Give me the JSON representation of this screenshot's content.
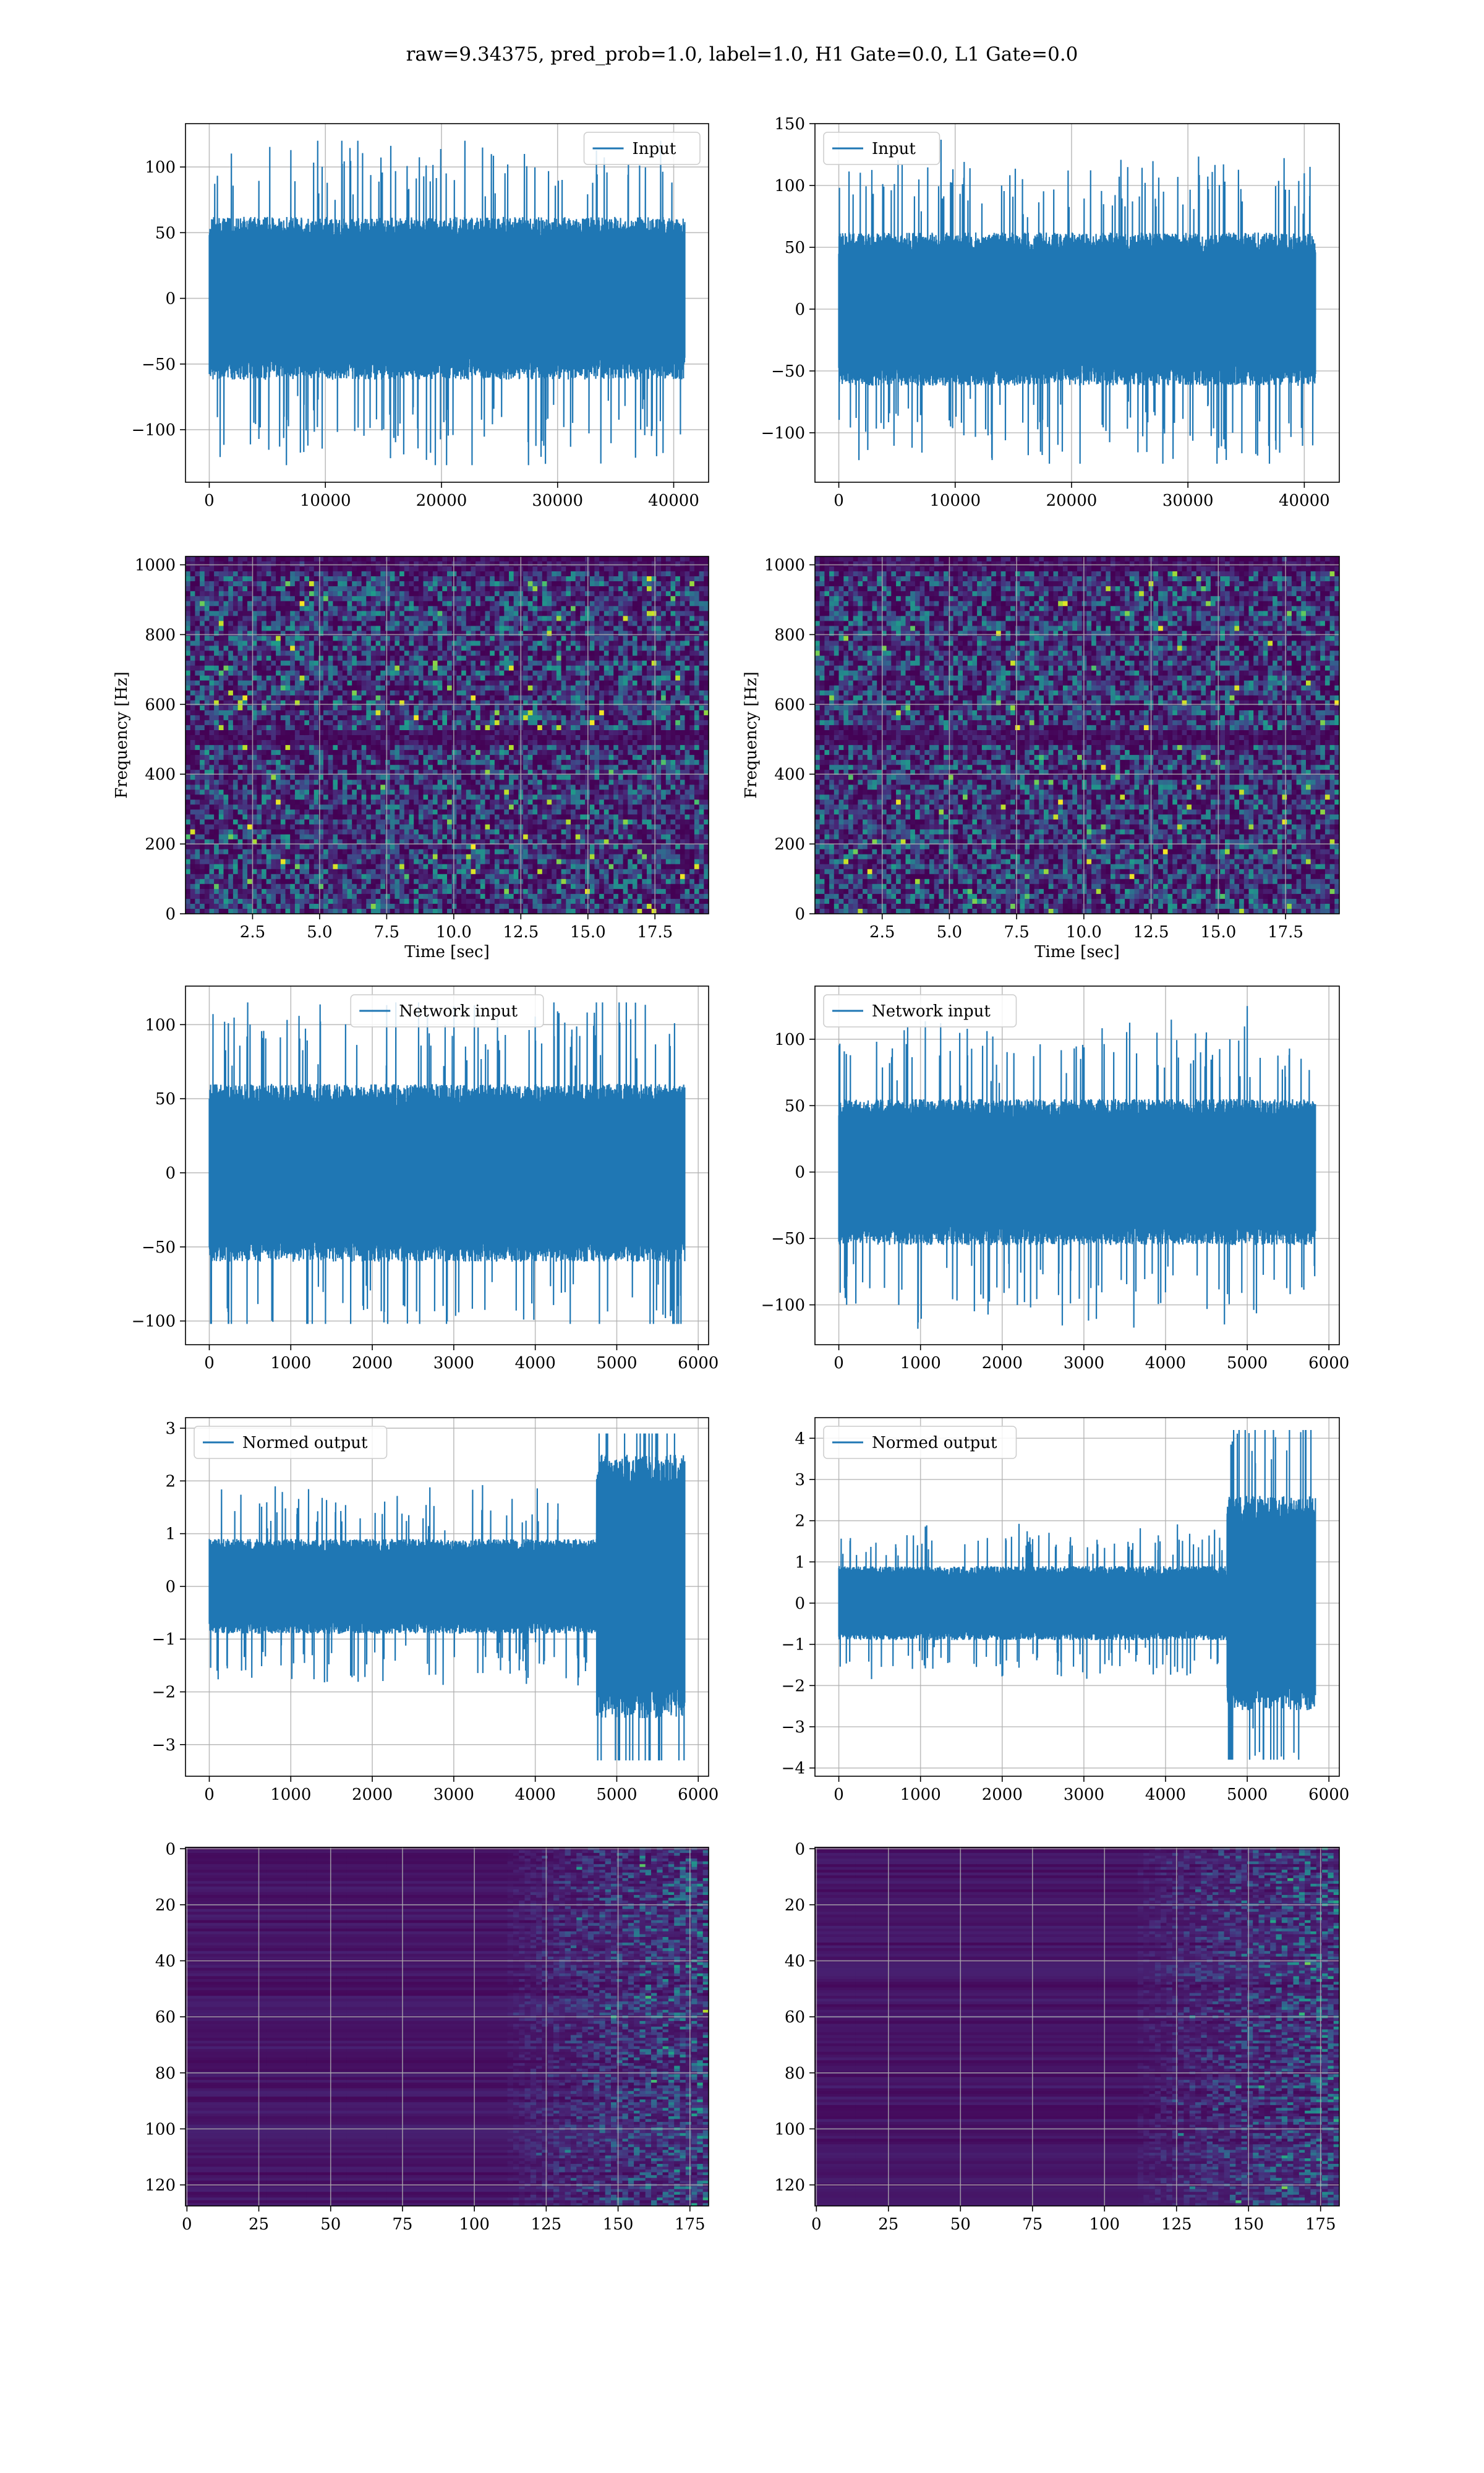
{
  "suptitle": "raw=9.34375, pred_prob=1.0, label=1.0, H1 Gate=0.0, L1 Gate=0.0",
  "colors": {
    "line": "#1f77b4",
    "grid": "#b0b0b0",
    "viridis_low": "#440154",
    "viridis_high": "#fde725"
  },
  "chart_data": [
    {
      "type": "line",
      "row": 0,
      "col": 0,
      "series": [
        {
          "name": "Input",
          "envelope": {
            "n": 40960,
            "typical_amp": 62,
            "max": 120,
            "min": -127
          }
        }
      ],
      "xlim": [
        -2048,
        43008
      ],
      "ylim": [
        -140,
        133
      ],
      "xticks": [
        0,
        10000,
        20000,
        30000,
        40000
      ],
      "xtick_labels": [
        "0",
        "10000",
        "20000",
        "30000",
        "40000"
      ],
      "yticks": [
        -100,
        -50,
        0,
        50,
        100
      ],
      "ytick_labels": [
        "−100",
        "−50",
        "0",
        "50",
        "100"
      ],
      "legend": "upper right",
      "grid": true
    },
    {
      "type": "line",
      "row": 0,
      "col": 1,
      "series": [
        {
          "name": "Input",
          "envelope": {
            "n": 40960,
            "typical_amp": 62,
            "max": 137,
            "min": -125
          }
        }
      ],
      "xlim": [
        -2048,
        43008
      ],
      "ylim": [
        -140,
        150
      ],
      "xticks": [
        0,
        10000,
        20000,
        30000,
        40000
      ],
      "xtick_labels": [
        "0",
        "10000",
        "20000",
        "30000",
        "40000"
      ],
      "yticks": [
        -100,
        -50,
        0,
        50,
        100,
        150
      ],
      "ytick_labels": [
        "−100",
        "−50",
        "0",
        "50",
        "100",
        "150"
      ],
      "legend": "upper left",
      "grid": true
    },
    {
      "type": "heatmap",
      "row": 1,
      "col": 0,
      "kind": "spectrogram",
      "xlim": [
        0,
        19.5
      ],
      "ylim": [
        0,
        1024
      ],
      "xticks": [
        2.5,
        5.0,
        7.5,
        10.0,
        12.5,
        15.0,
        17.5
      ],
      "xtick_labels": [
        "2.5",
        "5.0",
        "7.5",
        "10.0",
        "12.5",
        "15.0",
        "17.5"
      ],
      "yticks": [
        0,
        200,
        400,
        600,
        800,
        1000
      ],
      "ytick_labels": [
        "0",
        "200",
        "400",
        "600",
        "800",
        "1000"
      ],
      "xlabel": "Time [sec]",
      "ylabel": "Frequency [Hz]",
      "dark_bands_hz": [
        500,
        1000
      ],
      "grid": true
    },
    {
      "type": "heatmap",
      "row": 1,
      "col": 1,
      "kind": "spectrogram",
      "xlim": [
        0,
        19.5
      ],
      "ylim": [
        0,
        1024
      ],
      "xticks": [
        2.5,
        5.0,
        7.5,
        10.0,
        12.5,
        15.0,
        17.5
      ],
      "xtick_labels": [
        "2.5",
        "5.0",
        "7.5",
        "10.0",
        "12.5",
        "15.0",
        "17.5"
      ],
      "yticks": [
        0,
        200,
        400,
        600,
        800,
        1000
      ],
      "ytick_labels": [
        "0",
        "200",
        "400",
        "600",
        "800",
        "1000"
      ],
      "xlabel": "Time [sec]",
      "ylabel": "Frequency [Hz]",
      "dark_bands_hz": [
        500,
        1000
      ],
      "grid": true
    },
    {
      "type": "line",
      "row": 2,
      "col": 0,
      "series": [
        {
          "name": "Network input",
          "envelope": {
            "n": 5835,
            "typical_amp": 60,
            "max": 115,
            "min": -102
          }
        }
      ],
      "xlim": [
        -292,
        6127
      ],
      "ylim": [
        -116,
        126
      ],
      "xticks": [
        0,
        1000,
        2000,
        3000,
        4000,
        5000,
        6000
      ],
      "xtick_labels": [
        "0",
        "1000",
        "2000",
        "3000",
        "4000",
        "5000",
        "6000"
      ],
      "yticks": [
        -100,
        -50,
        0,
        50,
        100
      ],
      "ytick_labels": [
        "−100",
        "−50",
        "0",
        "50",
        "100"
      ],
      "legend": "upper center",
      "grid": true
    },
    {
      "type": "line",
      "row": 2,
      "col": 1,
      "series": [
        {
          "name": "Network input",
          "envelope": {
            "n": 5835,
            "typical_amp": 55,
            "max": 125,
            "min": -118
          }
        }
      ],
      "xlim": [
        -292,
        6127
      ],
      "ylim": [
        -130,
        140
      ],
      "xticks": [
        0,
        1000,
        2000,
        3000,
        4000,
        5000,
        6000
      ],
      "xtick_labels": [
        "0",
        "1000",
        "2000",
        "3000",
        "4000",
        "5000",
        "6000"
      ],
      "yticks": [
        -100,
        -50,
        0,
        50,
        100
      ],
      "ytick_labels": [
        "−100",
        "−50",
        "0",
        "50",
        "100"
      ],
      "legend": "upper left",
      "grid": true
    },
    {
      "type": "line",
      "row": 3,
      "col": 0,
      "series": [
        {
          "name": "Normed output",
          "envelope": {
            "n": 5835,
            "typical_amp": 0.9,
            "burst_start": 4750,
            "burst_amp": 2.5,
            "max": 2.9,
            "min": -3.3
          }
        }
      ],
      "xlim": [
        -292,
        6127
      ],
      "ylim": [
        -3.6,
        3.2
      ],
      "xticks": [
        0,
        1000,
        2000,
        3000,
        4000,
        5000,
        6000
      ],
      "xtick_labels": [
        "0",
        "1000",
        "2000",
        "3000",
        "4000",
        "5000",
        "6000"
      ],
      "yticks": [
        -3,
        -2,
        -1,
        0,
        1,
        2,
        3
      ],
      "ytick_labels": [
        "−3",
        "−2",
        "−1",
        "0",
        "1",
        "2",
        "3"
      ],
      "legend": "upper left",
      "grid": true
    },
    {
      "type": "line",
      "row": 3,
      "col": 1,
      "series": [
        {
          "name": "Normed output",
          "envelope": {
            "n": 5835,
            "typical_amp": 0.9,
            "burst_start": 4750,
            "burst_amp": 2.6,
            "max": 4.2,
            "min": -3.8
          }
        }
      ],
      "xlim": [
        -292,
        6127
      ],
      "ylim": [
        -4.2,
        4.5
      ],
      "xticks": [
        0,
        1000,
        2000,
        3000,
        4000,
        5000,
        6000
      ],
      "xtick_labels": [
        "0",
        "1000",
        "2000",
        "3000",
        "4000",
        "5000",
        "6000"
      ],
      "yticks": [
        -4,
        -3,
        -2,
        -1,
        0,
        1,
        2,
        3,
        4
      ],
      "ytick_labels": [
        "−4",
        "−3",
        "−2",
        "−1",
        "0",
        "1",
        "2",
        "3",
        "4"
      ],
      "legend": "upper left",
      "grid": true
    },
    {
      "type": "heatmap",
      "row": 4,
      "col": 0,
      "kind": "feature_map",
      "shape": [
        128,
        182
      ],
      "xlim": [
        -0.5,
        181.5
      ],
      "ylim": [
        127.5,
        -0.5
      ],
      "xticks": [
        0,
        25,
        50,
        75,
        100,
        125,
        150,
        175
      ],
      "xtick_labels": [
        "0",
        "25",
        "50",
        "75",
        "100",
        "125",
        "150",
        "175"
      ],
      "yticks": [
        0,
        20,
        40,
        60,
        80,
        100,
        120
      ],
      "ytick_labels": [
        "0",
        "20",
        "40",
        "60",
        "80",
        "100",
        "120"
      ],
      "active_from_col": 125,
      "grid": true
    },
    {
      "type": "heatmap",
      "row": 4,
      "col": 1,
      "kind": "feature_map",
      "shape": [
        128,
        182
      ],
      "xlim": [
        -0.5,
        181.5
      ],
      "ylim": [
        127.5,
        -0.5
      ],
      "xticks": [
        0,
        25,
        50,
        75,
        100,
        125,
        150,
        175
      ],
      "xtick_labels": [
        "0",
        "25",
        "50",
        "75",
        "100",
        "125",
        "150",
        "175"
      ],
      "yticks": [
        0,
        20,
        40,
        60,
        80,
        100,
        120
      ],
      "ytick_labels": [
        "0",
        "20",
        "40",
        "60",
        "80",
        "100",
        "120"
      ],
      "active_from_col": 125,
      "grid": true
    }
  ]
}
